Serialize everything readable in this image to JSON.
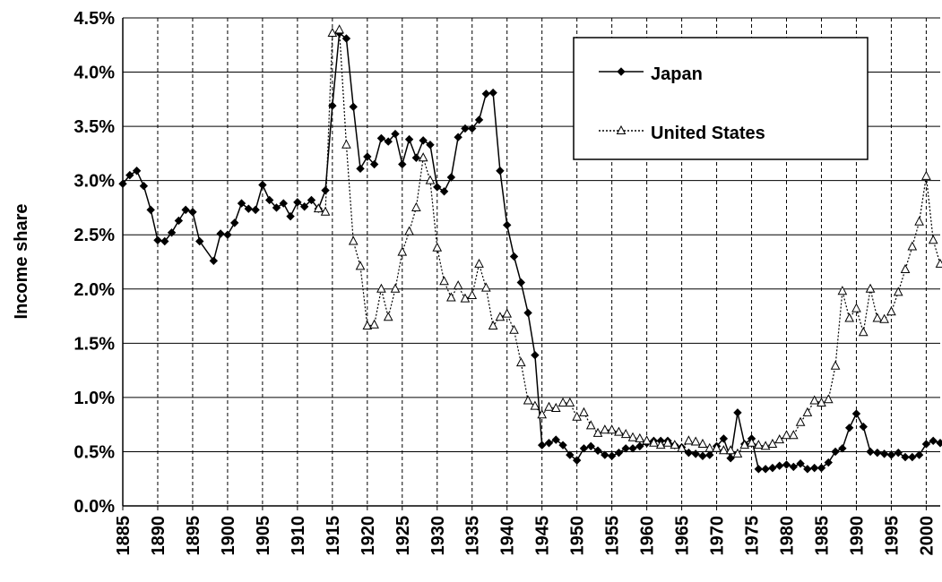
{
  "chart_data": {
    "type": "line",
    "y_label": "Income share",
    "xlim": [
      1885,
      2002
    ],
    "ylim": [
      0,
      4.5
    ],
    "xticks": [
      1885,
      1890,
      1895,
      1900,
      1905,
      1910,
      1915,
      1920,
      1925,
      1930,
      1935,
      1940,
      1945,
      1950,
      1955,
      1960,
      1965,
      1970,
      1975,
      1980,
      1985,
      1990,
      1995,
      2000
    ],
    "yticks": [
      {
        "value": 0,
        "label": "0.0%"
      },
      {
        "value": 0.5,
        "label": "0.5%"
      },
      {
        "value": 1,
        "label": "1.0%"
      },
      {
        "value": 1.5,
        "label": "1.5%"
      },
      {
        "value": 2,
        "label": "2.0%"
      },
      {
        "value": 2.5,
        "label": "2.5%"
      },
      {
        "value": 3,
        "label": "3.0%"
      },
      {
        "value": 3.5,
        "label": "3.5%"
      },
      {
        "value": 4,
        "label": "4.0%"
      },
      {
        "value": 4.5,
        "label": "4.5%"
      }
    ],
    "grid": true,
    "legend": "upper right",
    "series": [
      {
        "name": "Japan",
        "color": "#000000",
        "marker": "diamond",
        "dash": "solid",
        "x": [
          1885,
          1886,
          1887,
          1888,
          1889,
          1890,
          1891,
          1892,
          1893,
          1894,
          1895,
          1896,
          1898,
          1899,
          1900,
          1901,
          1902,
          1903,
          1904,
          1905,
          1906,
          1907,
          1908,
          1909,
          1910,
          1911,
          1912,
          1913,
          1914,
          1915,
          1916,
          1917,
          1918,
          1919,
          1920,
          1921,
          1922,
          1923,
          1924,
          1925,
          1926,
          1927,
          1928,
          1929,
          1930,
          1931,
          1932,
          1933,
          1934,
          1935,
          1936,
          1937,
          1938,
          1939,
          1940,
          1941,
          1942,
          1943,
          1944,
          1945,
          1946,
          1947,
          1948,
          1949,
          1950,
          1951,
          1952,
          1953,
          1954,
          1955,
          1956,
          1957,
          1958,
          1959,
          1960,
          1961,
          1962,
          1963,
          1964,
          1965,
          1966,
          1967,
          1968,
          1969,
          1970,
          1971,
          1972,
          1973,
          1974,
          1975,
          1976,
          1977,
          1978,
          1979,
          1980,
          1981,
          1982,
          1983,
          1984,
          1985,
          1986,
          1987,
          1988,
          1989,
          1990,
          1991,
          1992,
          1993,
          1994,
          1995,
          1996,
          1997,
          1998,
          1999,
          2000,
          2001,
          2002
        ],
        "values": [
          2.97,
          3.05,
          3.09,
          2.95,
          2.73,
          2.45,
          2.44,
          2.52,
          2.63,
          2.73,
          2.71,
          2.44,
          2.26,
          2.51,
          2.5,
          2.61,
          2.79,
          2.74,
          2.73,
          2.96,
          2.82,
          2.75,
          2.79,
          2.67,
          2.8,
          2.76,
          2.82,
          2.74,
          2.91,
          3.69,
          4.36,
          4.31,
          3.68,
          3.11,
          3.22,
          3.15,
          3.39,
          3.36,
          3.43,
          3.15,
          3.38,
          3.21,
          3.37,
          3.33,
          2.94,
          2.9,
          3.03,
          3.4,
          3.48,
          3.48,
          3.56,
          3.8,
          3.81,
          3.09,
          2.59,
          2.3,
          2.06,
          1.78,
          1.39,
          0.56,
          0.58,
          0.61,
          0.56,
          0.47,
          0.42,
          0.53,
          0.55,
          0.51,
          0.47,
          0.46,
          0.49,
          0.53,
          0.53,
          0.55,
          0.58,
          0.6,
          0.6,
          0.6,
          0.56,
          0.54,
          0.49,
          0.48,
          0.46,
          0.47,
          0.55,
          0.62,
          0.44,
          0.86,
          0.57,
          0.62,
          0.34,
          0.34,
          0.35,
          0.37,
          0.38,
          0.36,
          0.39,
          0.34,
          0.35,
          0.35,
          0.4,
          0.5,
          0.53,
          0.72,
          0.85,
          0.73,
          0.5,
          0.49,
          0.48,
          0.47,
          0.49,
          0.45,
          0.45,
          0.47,
          0.57,
          0.6,
          0.58
        ]
      },
      {
        "name": "United States",
        "color": "#000000",
        "marker": "triangle",
        "dash": "dotted",
        "x": [
          1913,
          1914,
          1915,
          1916,
          1917,
          1918,
          1919,
          1920,
          1921,
          1922,
          1923,
          1924,
          1925,
          1926,
          1927,
          1928,
          1929,
          1930,
          1931,
          1932,
          1933,
          1934,
          1935,
          1936,
          1937,
          1938,
          1939,
          1940,
          1941,
          1942,
          1943,
          1944,
          1945,
          1946,
          1947,
          1948,
          1949,
          1950,
          1951,
          1952,
          1953,
          1954,
          1955,
          1956,
          1957,
          1958,
          1959,
          1960,
          1961,
          1962,
          1963,
          1964,
          1965,
          1966,
          1967,
          1968,
          1969,
          1970,
          1971,
          1972,
          1973,
          1974,
          1975,
          1976,
          1977,
          1978,
          1979,
          1980,
          1981,
          1982,
          1983,
          1984,
          1985,
          1986,
          1987,
          1988,
          1989,
          1990,
          1991,
          1992,
          1993,
          1994,
          1995,
          1996,
          1997,
          1998,
          1999,
          2000,
          2001,
          2002
        ],
        "values": [
          2.74,
          2.71,
          4.36,
          4.39,
          3.33,
          2.44,
          2.21,
          1.66,
          1.67,
          2.0,
          1.74,
          2.0,
          2.34,
          2.53,
          2.75,
          3.21,
          3.0,
          2.38,
          2.07,
          1.92,
          2.03,
          1.91,
          1.94,
          2.23,
          2.01,
          1.66,
          1.74,
          1.77,
          1.62,
          1.32,
          0.97,
          0.92,
          0.84,
          0.91,
          0.9,
          0.95,
          0.95,
          0.82,
          0.86,
          0.74,
          0.67,
          0.7,
          0.7,
          0.68,
          0.66,
          0.63,
          0.62,
          0.6,
          0.58,
          0.56,
          0.58,
          0.56,
          0.53,
          0.6,
          0.59,
          0.57,
          0.53,
          0.53,
          0.51,
          0.51,
          0.48,
          0.56,
          0.58,
          0.56,
          0.55,
          0.57,
          0.61,
          0.65,
          0.65,
          0.77,
          0.86,
          0.97,
          0.95,
          0.98,
          1.29,
          1.98,
          1.73,
          1.82,
          1.6,
          2.0,
          1.73,
          1.72,
          1.79,
          1.97,
          2.18,
          2.39,
          2.62,
          3.04,
          2.45,
          2.23
        ]
      }
    ]
  }
}
